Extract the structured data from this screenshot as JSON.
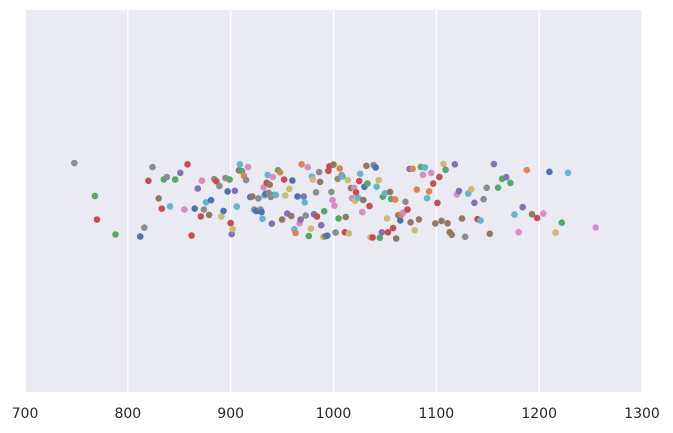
{
  "chart_data": {
    "type": "scatter",
    "title": "",
    "xlabel": "",
    "ylabel": "",
    "xlim": [
      700,
      1300
    ],
    "x_ticks": [
      700,
      800,
      900,
      1000,
      1100,
      1200,
      1300
    ],
    "x_tick_labels": [
      "700",
      "800",
      "900",
      "1000",
      "1100",
      "1200",
      "1300"
    ],
    "grid": true,
    "background": "#eaeaf2",
    "grid_color": "#ffffff",
    "palette": [
      "#4c72b0",
      "#dd8452",
      "#55a868",
      "#c44e52",
      "#8172b3",
      "#937860",
      "#da8bc3",
      "#8c8c8c",
      "#ccb974",
      "#64b5cd"
    ],
    "point_values": [
      748,
      768,
      770,
      788,
      812,
      816,
      820,
      824,
      830,
      833,
      835,
      838,
      841,
      846,
      851,
      855,
      858,
      862,
      865,
      868,
      871,
      872,
      874,
      876,
      879,
      881,
      884,
      886,
      889,
      891,
      893,
      895,
      897,
      899,
      900,
      901,
      902,
      904,
      906,
      908,
      909,
      911,
      913,
      915,
      917,
      919,
      921,
      923,
      925,
      927,
      929,
      930,
      931,
      932,
      933,
      934,
      935,
      936,
      937,
      938,
      939,
      940,
      941,
      942,
      944,
      946,
      948,
      950,
      952,
      953,
      955,
      957,
      959,
      960,
      962,
      963,
      965,
      967,
      968,
      969,
      971,
      972,
      973,
      975,
      976,
      978,
      979,
      980,
      981,
      983,
      984,
      986,
      987,
      988,
      990,
      991,
      992,
      994,
      995,
      996,
      998,
      999,
      1000,
      1001,
      1002,
      1004,
      1005,
      1006,
      1008,
      1009,
      1011,
      1012,
      1014,
      1015,
      1017,
      1018,
      1020,
      1021,
      1022,
      1024,
      1025,
      1026,
      1028,
      1029,
      1030,
      1032,
      1033,
      1035,
      1036,
      1038,
      1039,
      1041,
      1042,
      1044,
      1045,
      1047,
      1048,
      1050,
      1052,
      1053,
      1055,
      1056,
      1058,
      1060,
      1061,
      1063,
      1065,
      1066,
      1068,
      1070,
      1072,
      1074,
      1075,
      1077,
      1079,
      1081,
      1083,
      1085,
      1087,
      1089,
      1091,
      1093,
      1095,
      1097,
      1099,
      1101,
      1103,
      1105,
      1107,
      1109,
      1111,
      1113,
      1115,
      1118,
      1120,
      1122,
      1125,
      1128,
      1131,
      1134,
      1137,
      1140,
      1143,
      1146,
      1149,
      1152,
      1156,
      1160,
      1164,
      1168,
      1172,
      1176,
      1180,
      1184,
      1188,
      1193,
      1198,
      1204,
      1210,
      1216,
      1222,
      1228,
      1255
    ]
  }
}
